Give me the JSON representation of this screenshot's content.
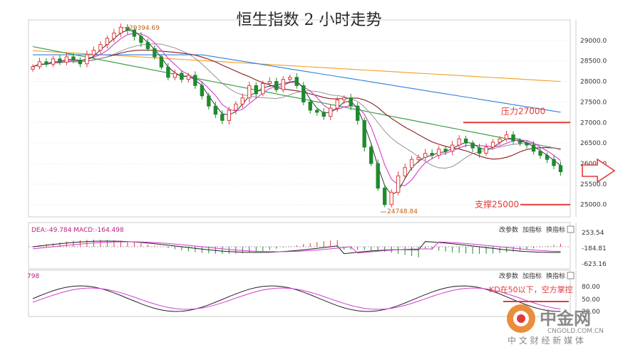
{
  "chart_data": [
    {
      "type": "candlestick",
      "title": "恒生指数 2 小时走势",
      "ylim": [
        24700,
        29500
      ],
      "y_ticks": [
        "25000.0",
        "25500.0",
        "26000.0",
        "26500.0",
        "27000.0",
        "27500.0",
        "28000.0",
        "28500.0",
        "29000.0"
      ],
      "annotations": {
        "high_label": "29394.69",
        "low_label": "24748.84",
        "resistance_label": "压力27000",
        "resistance_value": 27000,
        "support_label": "支撑25000",
        "support_value": 25000
      },
      "colors": {
        "up": "#e23a3a",
        "down": "#1f8a2e",
        "ma_orange": "#f0a020",
        "ma_blue": "#2f7fe0",
        "ma_green": "#2e9a3a",
        "ma_magenta": "#d23ad2",
        "ma_black": "#222222",
        "ma_darkred": "#8a1a1a",
        "ma_gray": "#888888",
        "level": "#e23a3a"
      },
      "close_series": [
        28360,
        28480,
        28420,
        28550,
        28470,
        28600,
        28520,
        28430,
        28650,
        28760,
        28900,
        29050,
        29180,
        29320,
        29250,
        29100,
        28950,
        28800,
        28600,
        28350,
        28100,
        28200,
        28050,
        28150,
        27900,
        27650,
        27400,
        27200,
        27050,
        27300,
        27450,
        27600,
        27900,
        27700,
        27950,
        28000,
        27800,
        28050,
        28100,
        27900,
        27500,
        27300,
        27250,
        27150,
        27350,
        27550,
        27600,
        27400,
        27050,
        26400,
        26000,
        25400,
        25000,
        25300,
        25700,
        25900,
        26100,
        26150,
        26250,
        26200,
        26350,
        26300,
        26450,
        26600,
        26500,
        26380,
        26250,
        26400,
        26520,
        26600,
        26700,
        26550,
        26500,
        26450,
        26300,
        26200,
        26100,
        25950,
        25800
      ]
    },
    {
      "type": "macd",
      "header": "DEA:-49.784 MACD:-164.498",
      "yticks": [
        "253.54",
        "-184.81",
        "-623.16"
      ],
      "buttons": [
        "改参数",
        "加指标",
        "换指标"
      ]
    },
    {
      "type": "kdj",
      "header": "798",
      "yticks": [
        "80.00",
        "50.00",
        "20.00"
      ],
      "buttons": [
        "改参数",
        "加指标",
        "换指标"
      ],
      "annotation": "KD在50以下，空方掌控"
    }
  ],
  "watermark": {
    "brand": "中金网",
    "url": "CNGOLD.COM.CN",
    "tagline": "中 文 财 经 新 媒 体"
  }
}
